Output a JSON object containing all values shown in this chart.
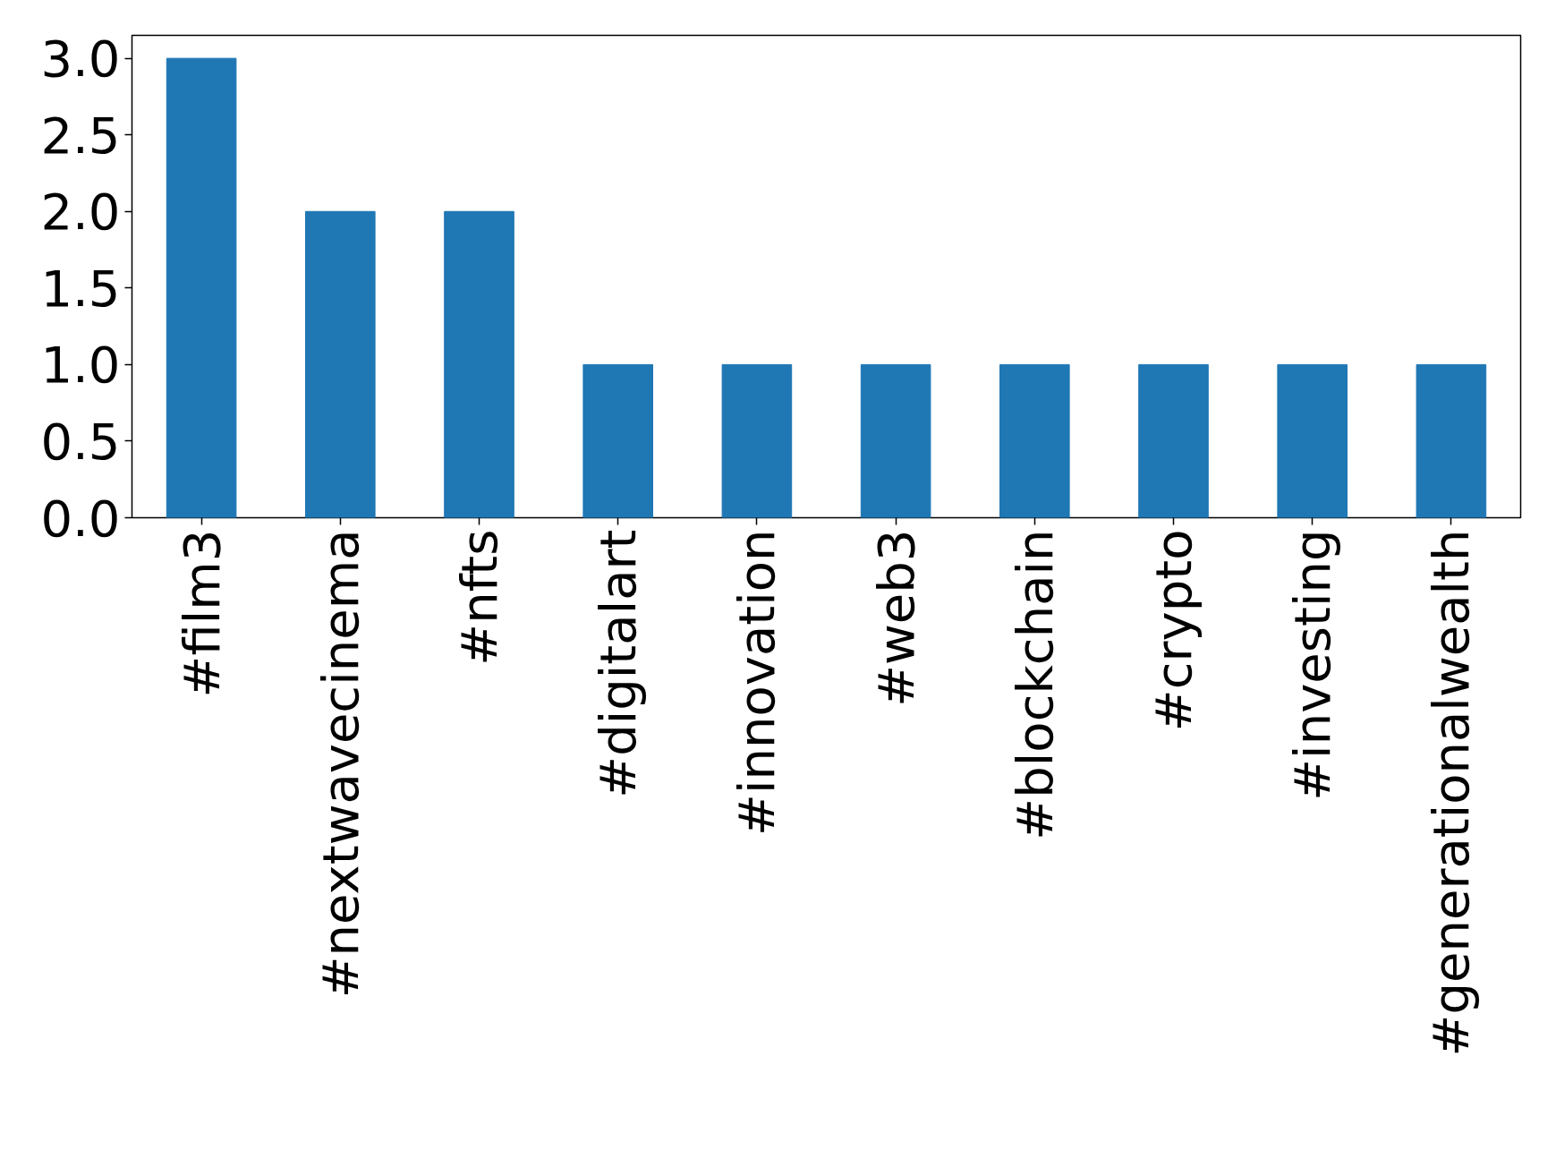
{
  "chart_data": {
    "type": "bar",
    "categories": [
      "#film3",
      "#nextwavecinema",
      "#nfts",
      "#digitalart",
      "#innovation",
      "#web3",
      "#blockchain",
      "#crypto",
      "#investing",
      "#generationalwealth"
    ],
    "values": [
      3,
      2,
      2,
      1,
      1,
      1,
      1,
      1,
      1,
      1
    ],
    "color": "#1f77b4",
    "ylim": [
      0,
      3.15
    ],
    "yticks": [
      {
        "value": 0,
        "label": "0.0"
      },
      {
        "value": 0.5,
        "label": "0.5"
      },
      {
        "value": 1,
        "label": "1.0"
      },
      {
        "value": 1.5,
        "label": "1.5"
      },
      {
        "value": 2,
        "label": "2.0"
      },
      {
        "value": 2.5,
        "label": "2.5"
      },
      {
        "value": 3,
        "label": "3.0"
      }
    ],
    "grid": false
  }
}
